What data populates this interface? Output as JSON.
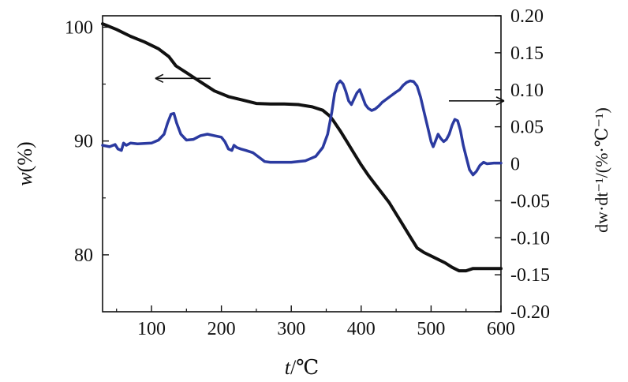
{
  "chart_data": {
    "type": "line",
    "xlabel_italic": "t",
    "xlabel_unit": "/℃",
    "ylabel_left_italic": "w",
    "ylabel_left_unit": "(%)",
    "ylabel_right": "dw·dt⁻¹/(%·℃⁻¹)",
    "xlim": [
      30,
      600
    ],
    "x_ticks": [
      100,
      200,
      300,
      400,
      500,
      600
    ],
    "ylim_left": [
      75,
      101
    ],
    "y_ticks_left": [
      80,
      90,
      100
    ],
    "ylim_right": [
      -0.2,
      0.2
    ],
    "y_ticks_right": [
      "0.20",
      "0.15",
      "0.10",
      "0.05",
      "0",
      "-0.05",
      "-0.10",
      "-0.15",
      "-0.20"
    ],
    "series": [
      {
        "axis": "left",
        "color": "#111111",
        "x": [
          30,
          50,
          70,
          90,
          110,
          125,
          135,
          150,
          170,
          190,
          210,
          230,
          250,
          270,
          290,
          310,
          330,
          345,
          355,
          360,
          370,
          380,
          390,
          400,
          410,
          420,
          430,
          440,
          450,
          460,
          470,
          480,
          490,
          500,
          510,
          520,
          530,
          540,
          550,
          560,
          570,
          600
        ],
        "y": [
          100.3,
          99.8,
          99.2,
          98.7,
          98.1,
          97.4,
          96.6,
          96.0,
          95.2,
          94.4,
          93.9,
          93.6,
          93.3,
          93.25,
          93.25,
          93.2,
          93.0,
          92.7,
          92.2,
          91.8,
          90.9,
          89.9,
          88.9,
          87.9,
          87.0,
          86.2,
          85.4,
          84.6,
          83.6,
          82.6,
          81.6,
          80.6,
          80.2,
          79.9,
          79.6,
          79.3,
          78.9,
          78.6,
          78.6,
          78.8,
          78.8,
          78.8
        ]
      },
      {
        "axis": "right",
        "color": "#2b3aa0",
        "x": [
          30,
          40,
          48,
          52,
          57,
          60,
          64,
          70,
          80,
          100,
          110,
          118,
          123,
          128,
          132,
          136,
          142,
          150,
          160,
          170,
          180,
          190,
          200,
          205,
          210,
          215,
          218,
          222,
          228,
          235,
          245,
          255,
          262,
          270,
          285,
          300,
          320,
          335,
          345,
          352,
          358,
          362,
          366,
          370,
          374,
          378,
          382,
          386,
          390,
          394,
          398,
          402,
          406,
          410,
          415,
          420,
          425,
          430,
          440,
          450,
          455,
          460,
          465,
          470,
          475,
          480,
          485,
          490,
          495,
          500,
          503,
          506,
          510,
          514,
          518,
          522,
          526,
          530,
          534,
          538,
          542,
          546,
          550,
          555,
          560,
          565,
          570,
          575,
          580,
          590,
          600
        ],
        "y": [
          0.025,
          0.023,
          0.026,
          0.02,
          0.018,
          0.028,
          0.025,
          0.028,
          0.027,
          0.028,
          0.032,
          0.04,
          0.055,
          0.067,
          0.068,
          0.055,
          0.04,
          0.032,
          0.033,
          0.038,
          0.04,
          0.038,
          0.036,
          0.03,
          0.02,
          0.018,
          0.025,
          0.022,
          0.02,
          0.018,
          0.015,
          0.008,
          0.003,
          0.002,
          0.002,
          0.002,
          0.004,
          0.01,
          0.022,
          0.04,
          0.07,
          0.095,
          0.108,
          0.112,
          0.108,
          0.098,
          0.085,
          0.08,
          0.088,
          0.096,
          0.1,
          0.09,
          0.08,
          0.075,
          0.072,
          0.074,
          0.078,
          0.083,
          0.09,
          0.097,
          0.1,
          0.106,
          0.11,
          0.112,
          0.111,
          0.105,
          0.09,
          0.07,
          0.05,
          0.03,
          0.023,
          0.03,
          0.04,
          0.034,
          0.03,
          0.033,
          0.04,
          0.052,
          0.06,
          0.058,
          0.045,
          0.025,
          0.01,
          -0.008,
          -0.015,
          -0.01,
          -0.002,
          0.002,
          0,
          0.001,
          0.001
        ]
      }
    ],
    "annotations": [
      {
        "text": "←",
        "points_to": "left-axis",
        "x": 145,
        "y_left": 95.5
      },
      {
        "text": "→",
        "points_to": "right-axis",
        "x": 565,
        "y_right": 0.085
      }
    ]
  }
}
